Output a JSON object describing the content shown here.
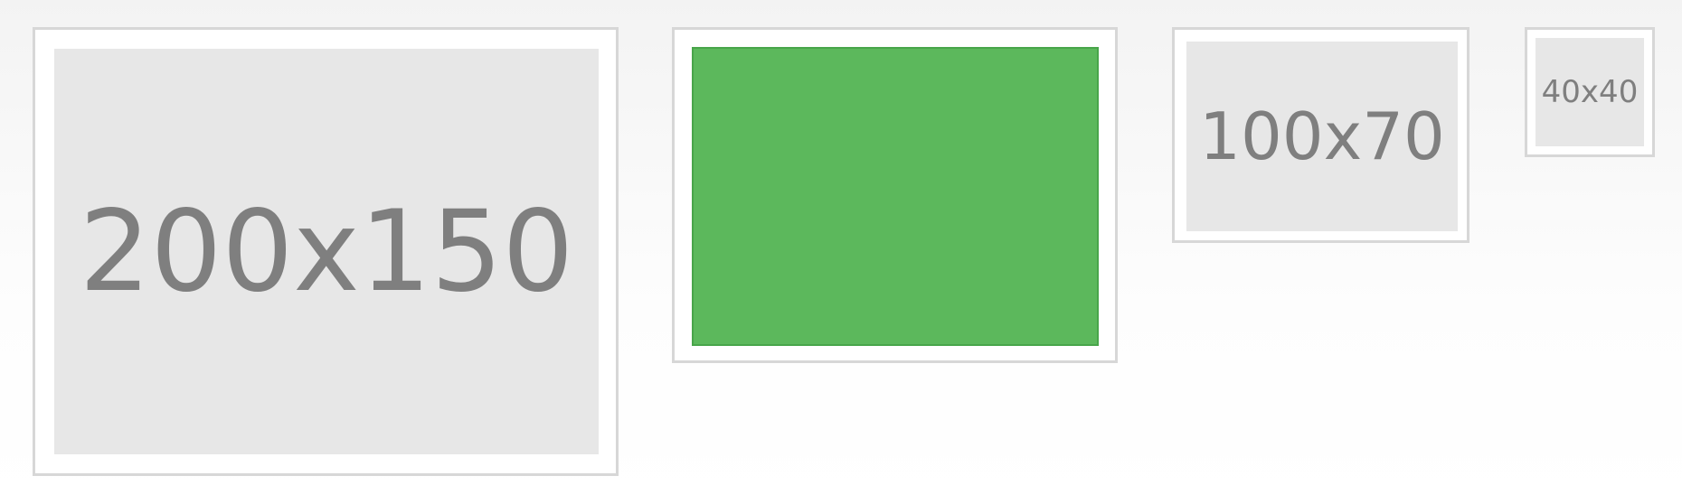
{
  "thumbnails": [
    {
      "label": "200x150"
    },
    {
      "label": "",
      "fill_color": "#5cb85c"
    },
    {
      "label": "100x70"
    },
    {
      "label": "40x40"
    }
  ]
}
